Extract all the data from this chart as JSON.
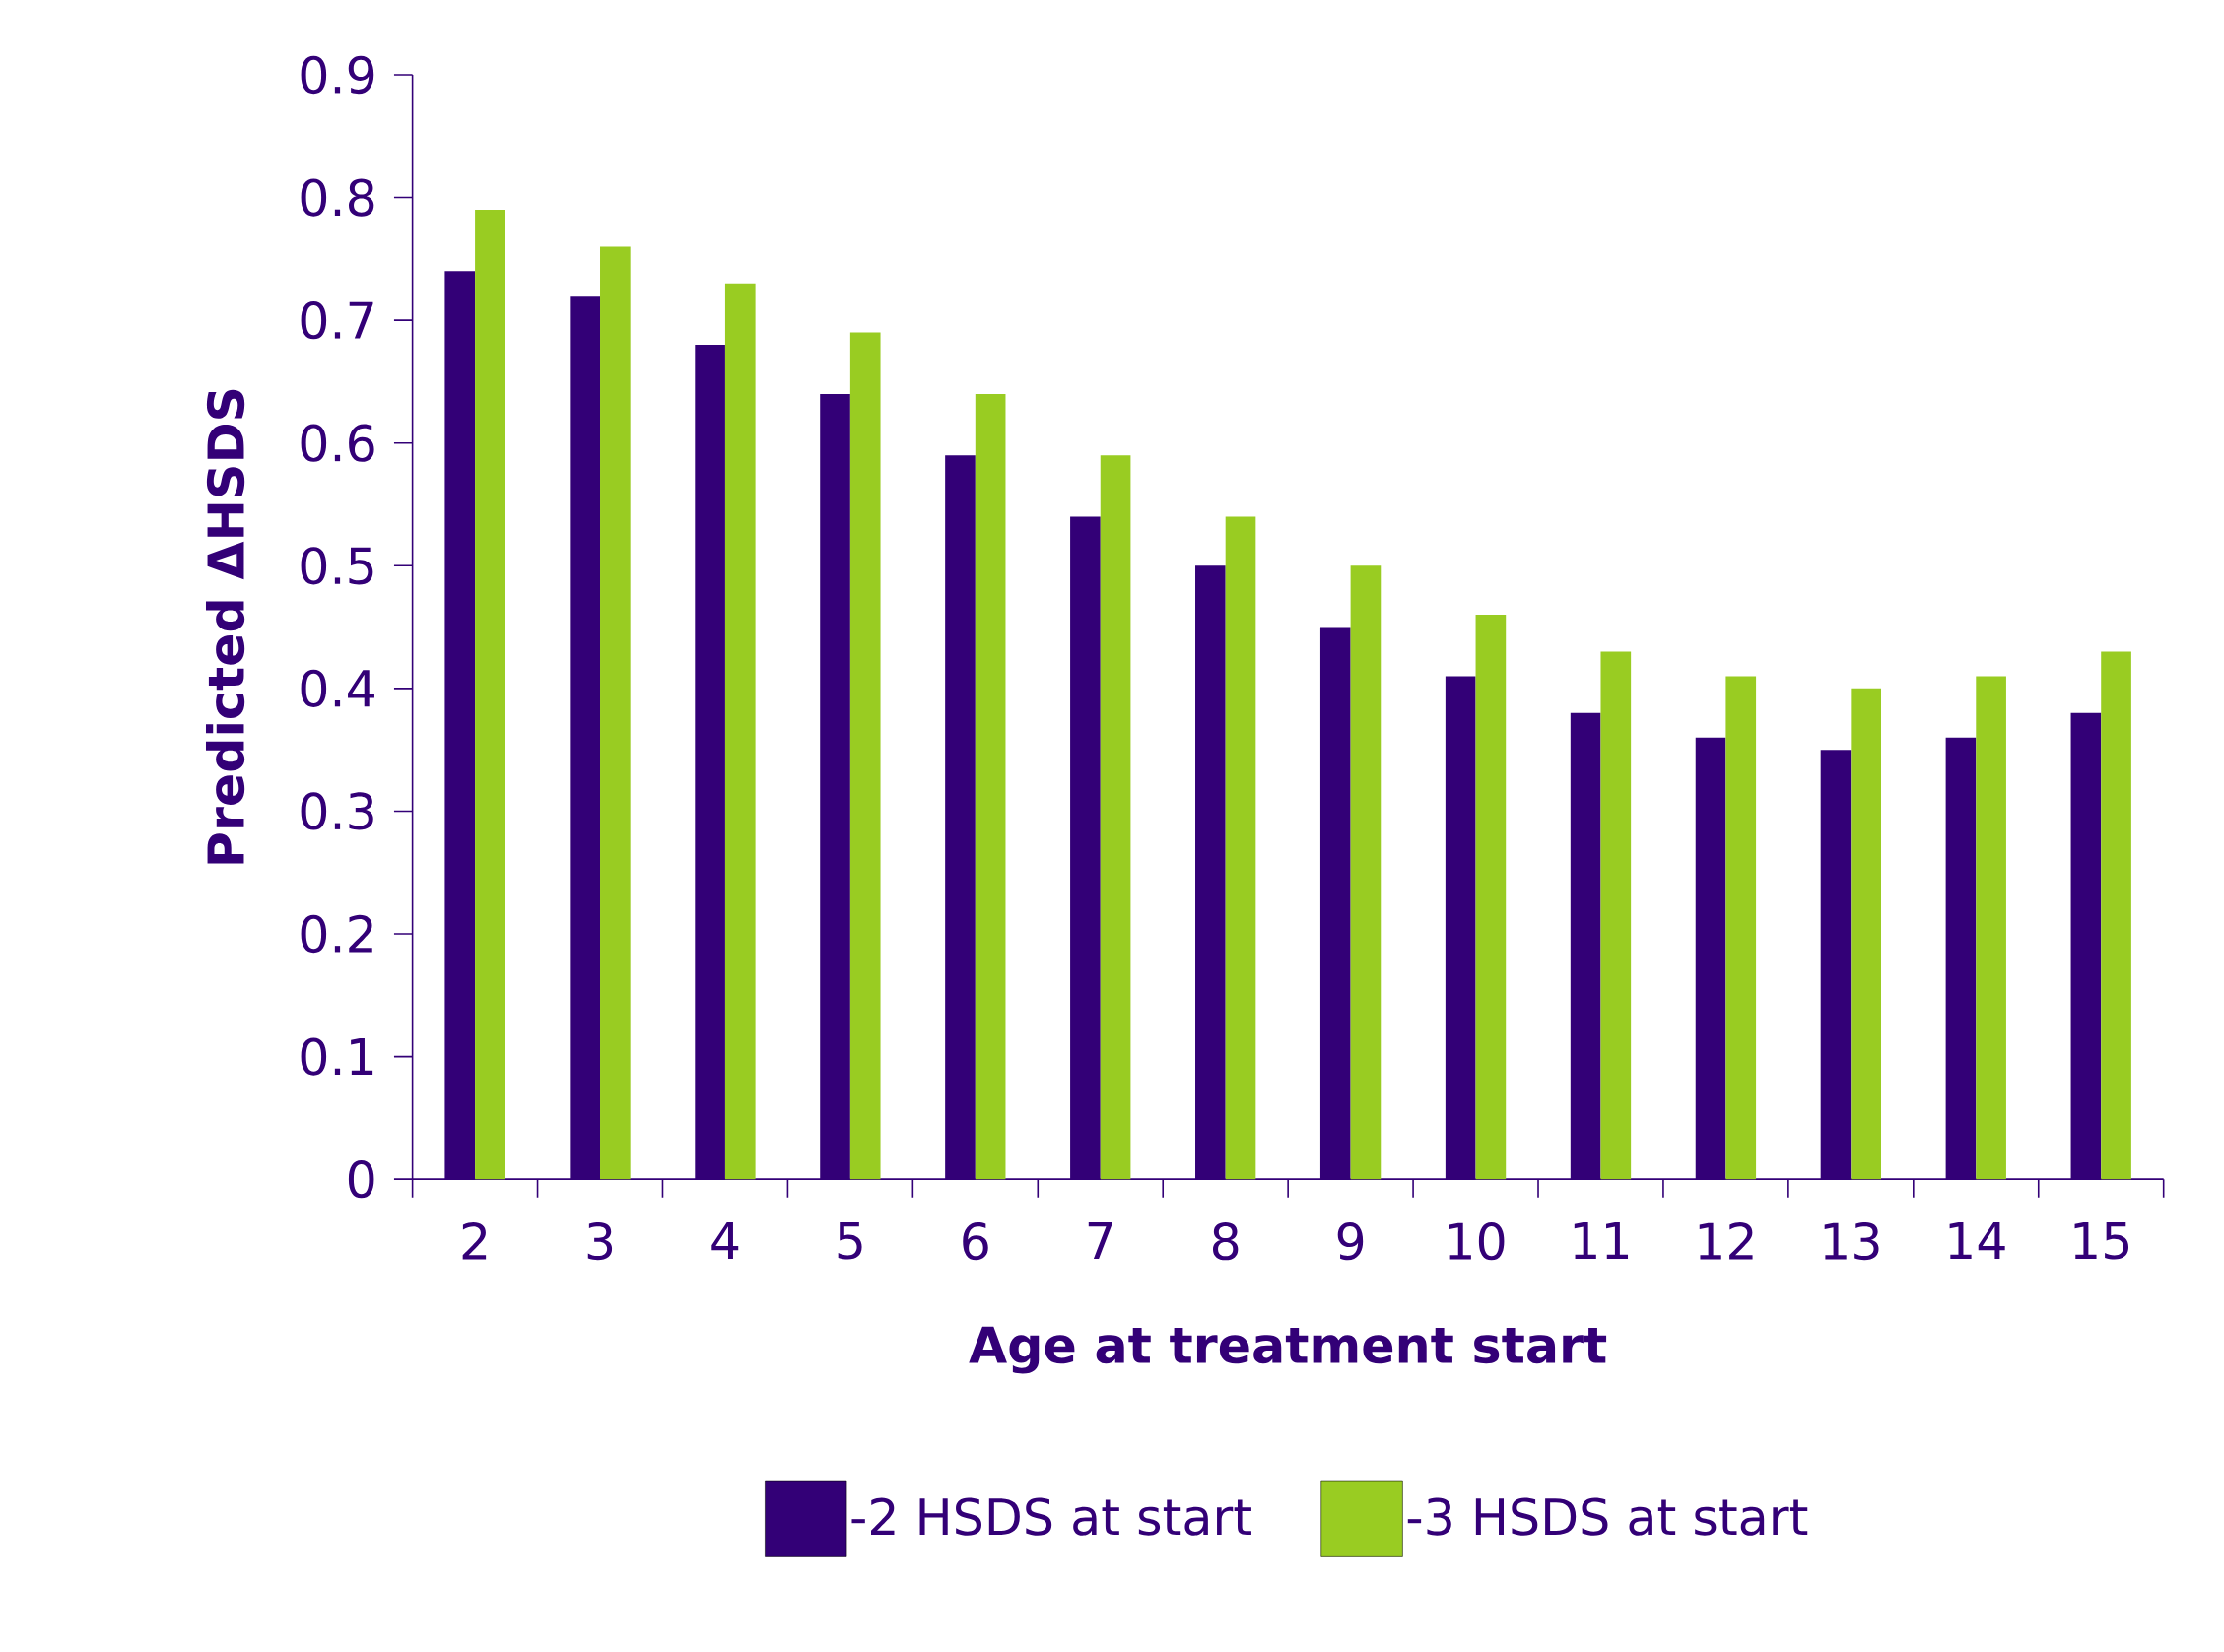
{
  "chart_data": {
    "type": "bar",
    "xlabel": "Age at treatment start",
    "ylabel": "Predicted ΔHSDS",
    "categories": [
      "2",
      "3",
      "4",
      "5",
      "6",
      "7",
      "8",
      "9",
      "10",
      "11",
      "12",
      "13",
      "14",
      "15"
    ],
    "series": [
      {
        "name": "-2 HSDS at start",
        "color": "#330077",
        "values": [
          0.74,
          0.72,
          0.68,
          0.64,
          0.59,
          0.54,
          0.5,
          0.45,
          0.41,
          0.38,
          0.36,
          0.35,
          0.36,
          0.38
        ]
      },
      {
        "name": "-3 HSDS at start",
        "color": "#99cc22",
        "values": [
          0.79,
          0.76,
          0.73,
          0.69,
          0.64,
          0.59,
          0.54,
          0.5,
          0.46,
          0.43,
          0.41,
          0.4,
          0.41,
          0.43
        ]
      }
    ],
    "ylim": [
      0,
      0.9
    ],
    "yticks": [
      0,
      0.1,
      0.2,
      0.3,
      0.4,
      0.5,
      0.6,
      0.7,
      0.8,
      0.9
    ],
    "legend": "bottom"
  }
}
